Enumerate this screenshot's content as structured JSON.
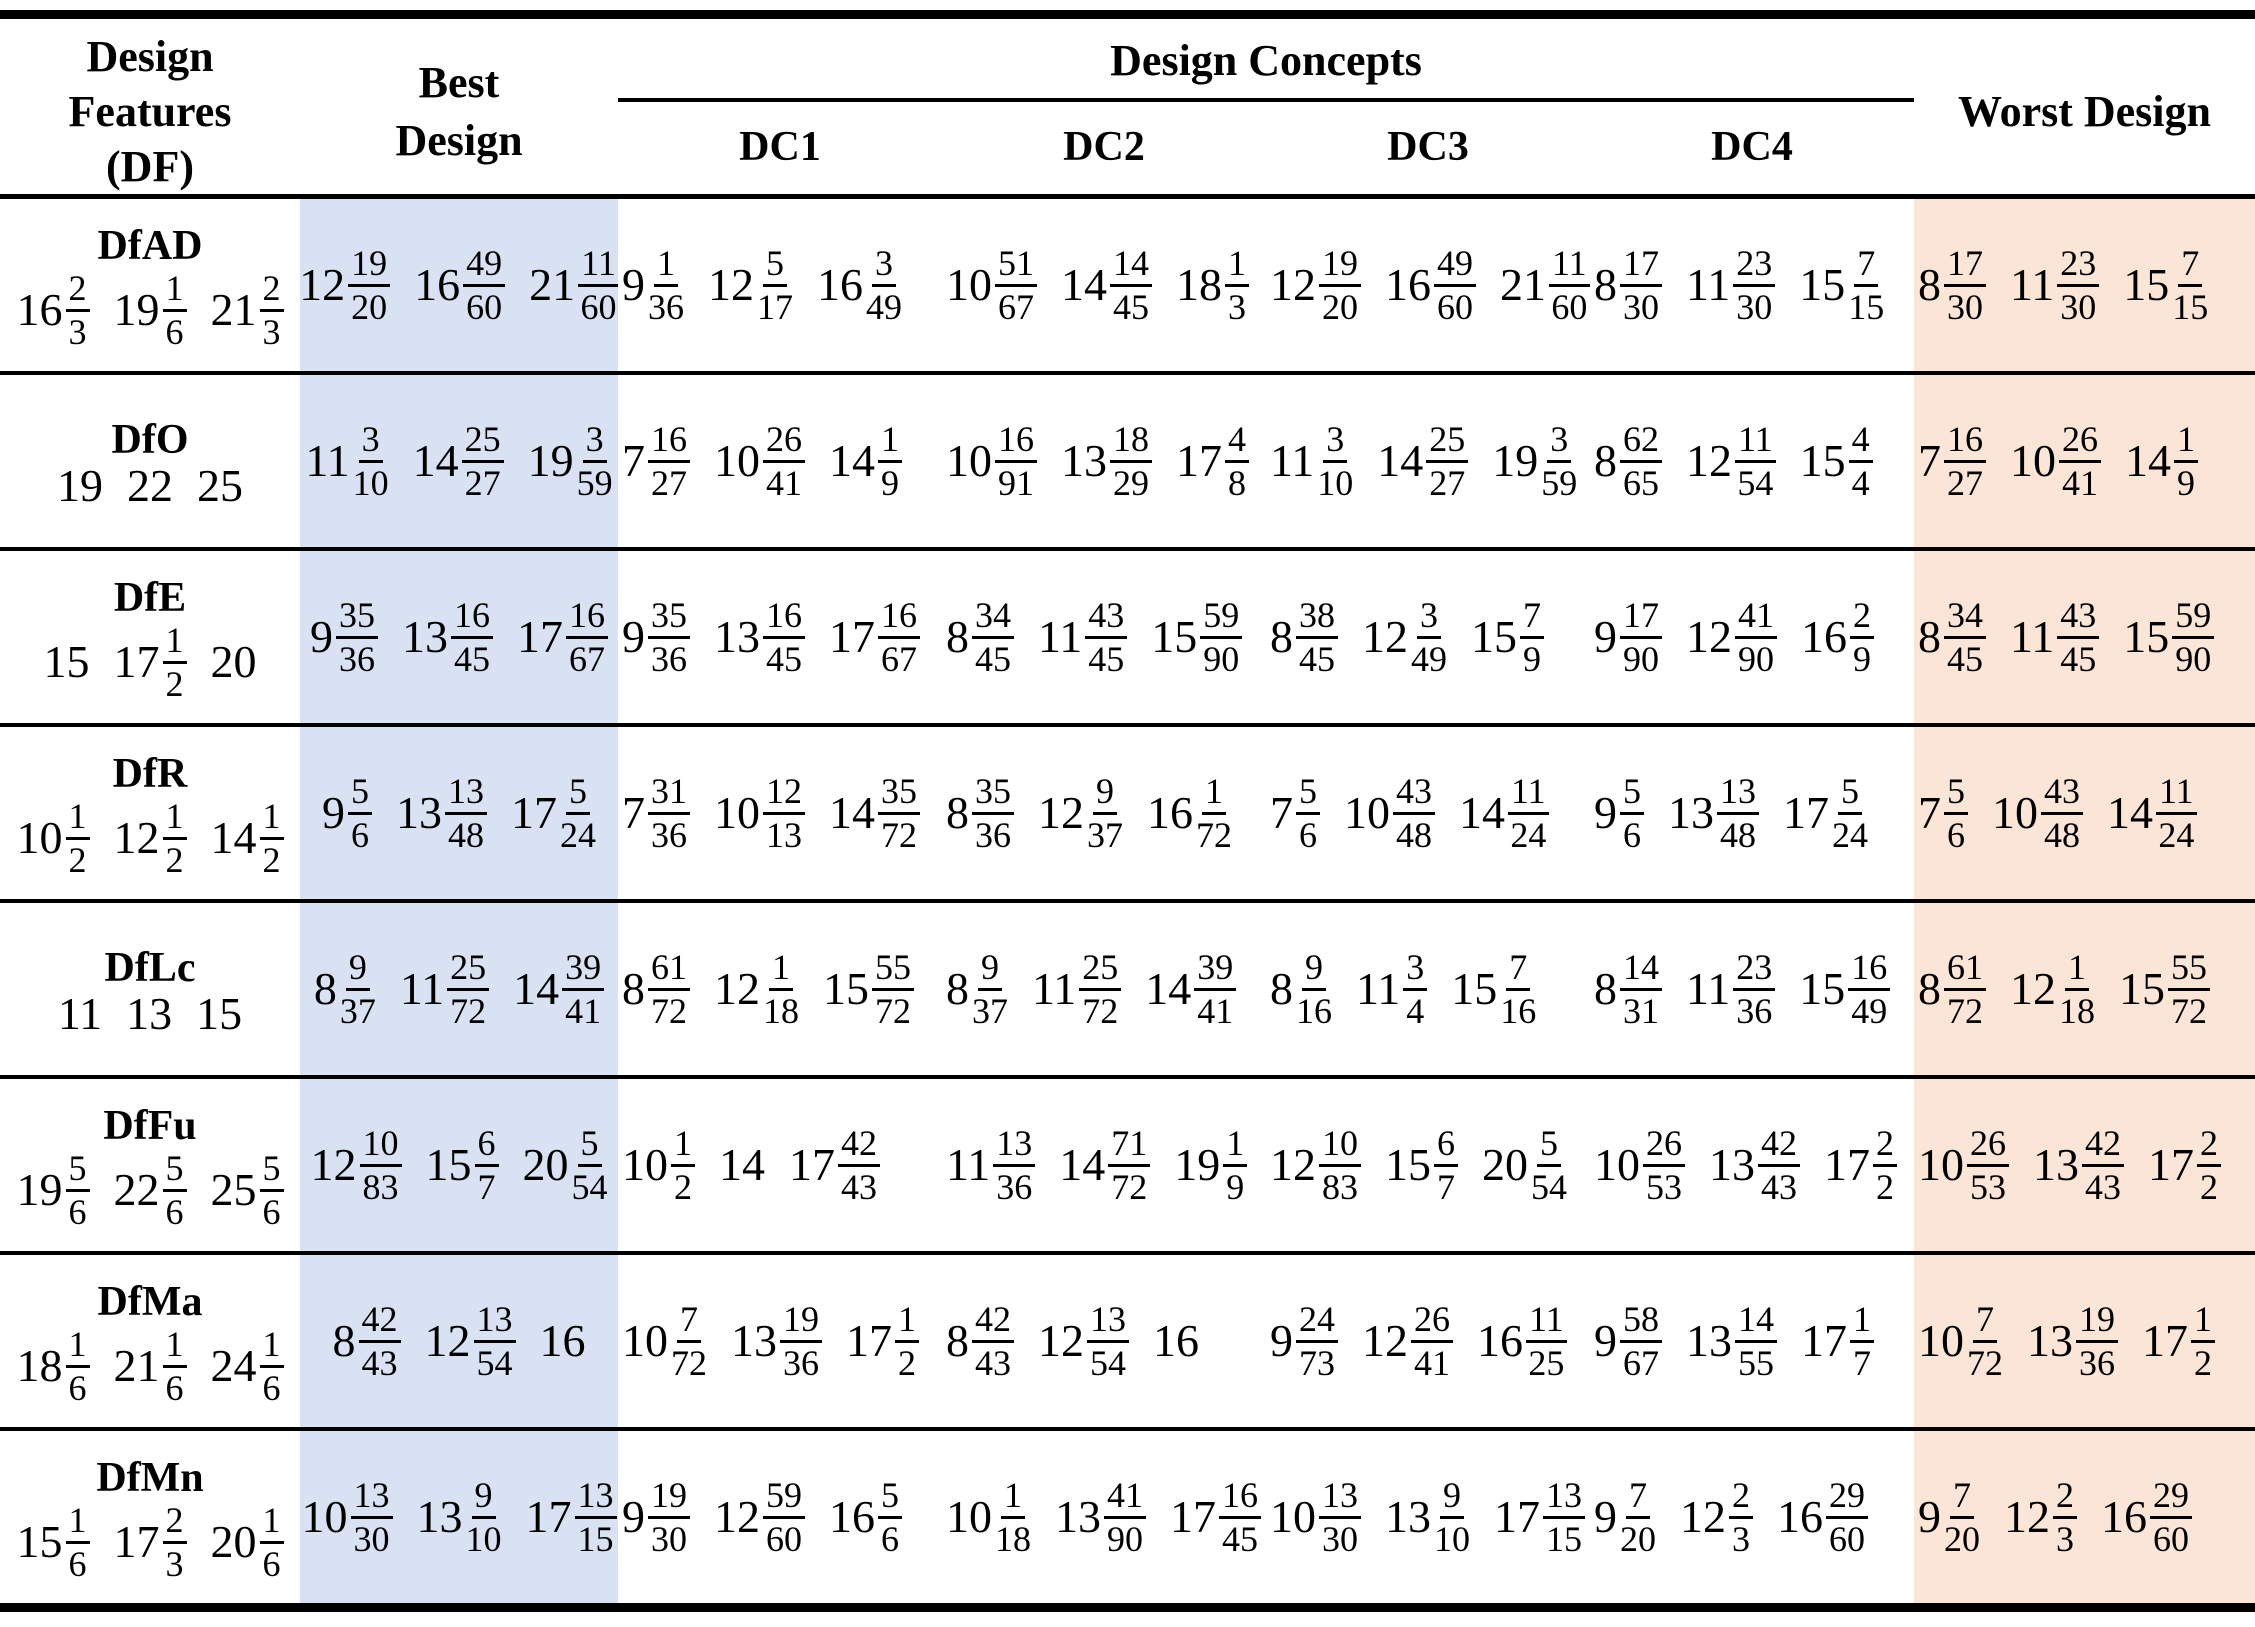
{
  "header": {
    "col_df": "Design Features (DF)",
    "col_df_lines": [
      "Design",
      "Features",
      "(DF)"
    ],
    "col_best_lines": [
      "Best",
      "Design"
    ],
    "group_dc": "Design Concepts",
    "dc_labels": [
      "DC1",
      "DC2",
      "DC3",
      "DC4"
    ],
    "col_worst": "Worst Design"
  },
  "colors": {
    "best_band_bg": "#d9e2f3",
    "worst_band_bg": "#fbe5d6",
    "border": "#000000"
  },
  "rows": [
    {
      "label": "DfAD",
      "df": [
        "16 2/3",
        "19 1/6",
        "21 2/3"
      ],
      "best": [
        "12 19/20",
        "16 49/60",
        "21 11/60"
      ],
      "dc1": [
        "9 1/36",
        "12 5/17",
        "16 3/49"
      ],
      "dc2": [
        "10 51/67",
        "14 14/45",
        "18 1/3"
      ],
      "dc3": [
        "12 19/20",
        "16 49/60",
        "21 11/60"
      ],
      "dc4": [
        "8 17/30",
        "11 23/30",
        "15 7/15"
      ],
      "worst": [
        "8 17/30",
        "11 23/30",
        "15 7/15"
      ]
    },
    {
      "label": "DfO",
      "df": [
        "19",
        "22",
        "25"
      ],
      "best": [
        "11 3/10",
        "14 25/27",
        "19 3/59"
      ],
      "dc1": [
        "7 16/27",
        "10 26/41",
        "14 1/9"
      ],
      "dc2": [
        "10 16/91",
        "13 18/29",
        "17 4/8"
      ],
      "dc3": [
        "11 3/10",
        "14 25/27",
        "19 3/59"
      ],
      "dc4": [
        "8 62/65",
        "12 11/54",
        "15 4/4"
      ],
      "worst": [
        "7 16/27",
        "10 26/41",
        "14 1/9"
      ]
    },
    {
      "label": "DfE",
      "df": [
        "15",
        "17 1/2",
        "20"
      ],
      "best": [
        "9 35/36",
        "13 16/45",
        "17 16/67"
      ],
      "dc1": [
        "9 35/36",
        "13 16/45",
        "17 16/67"
      ],
      "dc2": [
        "8 34/45",
        "11 43/45",
        "15 59/90"
      ],
      "dc3": [
        "8 38/45",
        "12 3/49",
        "15 7/9"
      ],
      "dc4": [
        "9 17/90",
        "12 41/90",
        "16 2/9"
      ],
      "worst": [
        "8 34/45",
        "11 43/45",
        "15 59/90"
      ]
    },
    {
      "label": "DfR",
      "df": [
        "10 1/2",
        "12 1/2",
        "14 1/2"
      ],
      "best": [
        "9 5/6",
        "13 13/48",
        "17 5/24"
      ],
      "dc1": [
        "7 31/36",
        "10 12/13",
        "14 35/72"
      ],
      "dc2": [
        "8 35/36",
        "12 9/37",
        "16 1/72"
      ],
      "dc3": [
        "7 5/6",
        "10 43/48",
        "14 11/24"
      ],
      "dc4": [
        "9 5/6",
        "13 13/48",
        "17 5/24"
      ],
      "worst": [
        "7 5/6",
        "10 43/48",
        "14 11/24"
      ]
    },
    {
      "label": "DfLc",
      "df": [
        "11",
        "13",
        "15"
      ],
      "best": [
        "8 9/37",
        "11 25/72",
        "14 39/41"
      ],
      "dc1": [
        "8 61/72",
        "12 1/18",
        "15 55/72"
      ],
      "dc2": [
        "8 9/37",
        "11 25/72",
        "14 39/41"
      ],
      "dc3": [
        "8 9/16",
        "11 3/4",
        "15 7/16"
      ],
      "dc4": [
        "8 14/31",
        "11 23/36",
        "15 16/49"
      ],
      "worst": [
        "8 61/72",
        "12 1/18",
        "15 55/72"
      ]
    },
    {
      "label": "DfFu",
      "df": [
        "19 5/6",
        "22 5/6",
        "25 5/6"
      ],
      "best": [
        "12 10/83",
        "15 6/7",
        "20 5/54"
      ],
      "dc1": [
        "10 1/2",
        "14",
        "17 42/43"
      ],
      "dc2": [
        "11 13/36",
        "14 71/72",
        "19 1/9"
      ],
      "dc3": [
        "12 10/83",
        "15 6/7",
        "20 5/54"
      ],
      "dc4": [
        "10 26/53",
        "13 42/43",
        "17 2/2"
      ],
      "worst": [
        "10 26/53",
        "13 42/43",
        "17 2/2"
      ]
    },
    {
      "label": "DfMa",
      "df": [
        "18 1/6",
        "21 1/6",
        "24 1/6"
      ],
      "best": [
        "8 42/43",
        "12 13/54",
        "16"
      ],
      "dc1": [
        "10 7/72",
        "13 19/36",
        "17 1/2"
      ],
      "dc2": [
        "8 42/43",
        "12 13/54",
        "16"
      ],
      "dc3": [
        "9 24/73",
        "12 26/41",
        "16 11/25"
      ],
      "dc4": [
        "9 58/67",
        "13 14/55",
        "17 1/7"
      ],
      "worst": [
        "10 7/72",
        "13 19/36",
        "17 1/2"
      ]
    },
    {
      "label": "DfMn",
      "df": [
        "15 1/6",
        "17 2/3",
        "20 1/6"
      ],
      "best": [
        "10 13/30",
        "13 9/10",
        "17 13/15"
      ],
      "dc1": [
        "9 19/30",
        "12 59/60",
        "16 5/6"
      ],
      "dc2": [
        "10 1/18",
        "13 41/90",
        "17 16/45"
      ],
      "dc3": [
        "10 13/30",
        "13 9/10",
        "17 13/15"
      ],
      "dc4": [
        "9 7/20",
        "12 2/3",
        "16 29/60"
      ],
      "worst": [
        "9 7/20",
        "12 2/3",
        "16 29/60"
      ]
    }
  ]
}
